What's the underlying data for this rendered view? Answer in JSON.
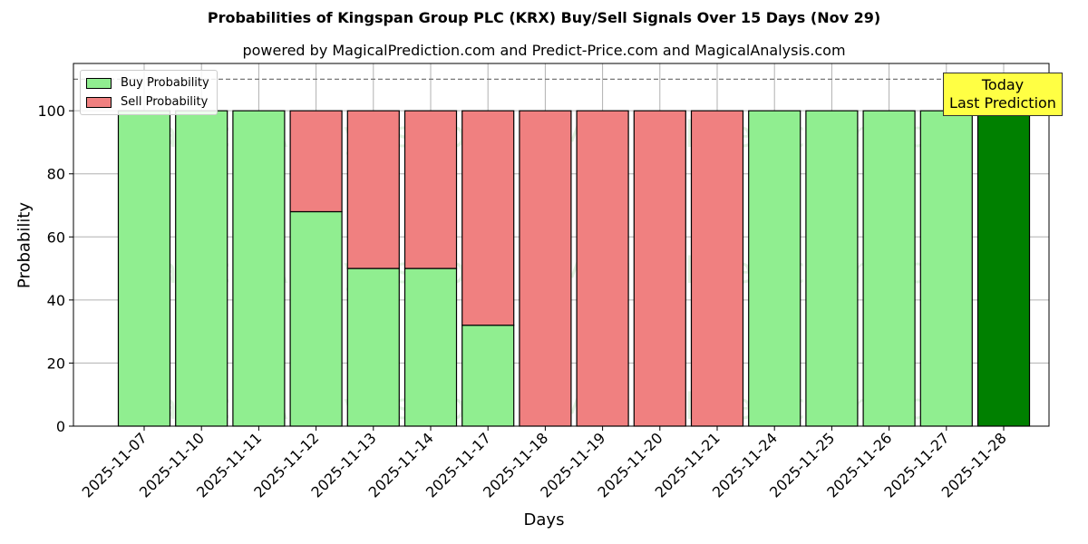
{
  "chart_data": {
    "type": "bar",
    "stacked": true,
    "title": "Probabilities of Kingspan Group PLC (KRX) Buy/Sell Signals Over 15 Days (Nov 29)",
    "subtitle": "powered by MagicalPrediction.com and Predict-Price.com and MagicalAnalysis.com",
    "xlabel": "Days",
    "ylabel": "Probability",
    "ylim": [
      0,
      115
    ],
    "yticks": [
      0,
      20,
      40,
      60,
      80,
      100
    ],
    "reference_line": 110,
    "categories": [
      "2025-11-07",
      "2025-11-10",
      "2025-11-11",
      "2025-11-12",
      "2025-11-13",
      "2025-11-14",
      "2025-11-17",
      "2025-11-18",
      "2025-11-19",
      "2025-11-20",
      "2025-11-21",
      "2025-11-24",
      "2025-11-25",
      "2025-11-26",
      "2025-11-27",
      "2025-11-28"
    ],
    "series": [
      {
        "name": "Buy Probability",
        "color": "#90ee90",
        "values": [
          100,
          100,
          100,
          68,
          50,
          50,
          32,
          0,
          0,
          0,
          0,
          100,
          100,
          100,
          100,
          100
        ]
      },
      {
        "name": "Sell Probability",
        "color": "#f08080",
        "values": [
          0,
          0,
          0,
          32,
          50,
          50,
          68,
          100,
          100,
          100,
          100,
          0,
          0,
          0,
          0,
          0
        ]
      }
    ],
    "highlight": {
      "index": 15,
      "color": "#008000",
      "label": "Today\nLast Prediction"
    },
    "legend": [
      "Buy Probability",
      "Sell Probability"
    ],
    "legend_position": "upper left",
    "grid": true,
    "watermarks": [
      "MagicalAnalysis.com",
      "MagicalPrediction.com"
    ]
  },
  "legend": {
    "buy": "Buy Probability",
    "sell": "Sell Probability"
  },
  "annotation": {
    "line1": "Today",
    "line2": "Last Prediction"
  }
}
